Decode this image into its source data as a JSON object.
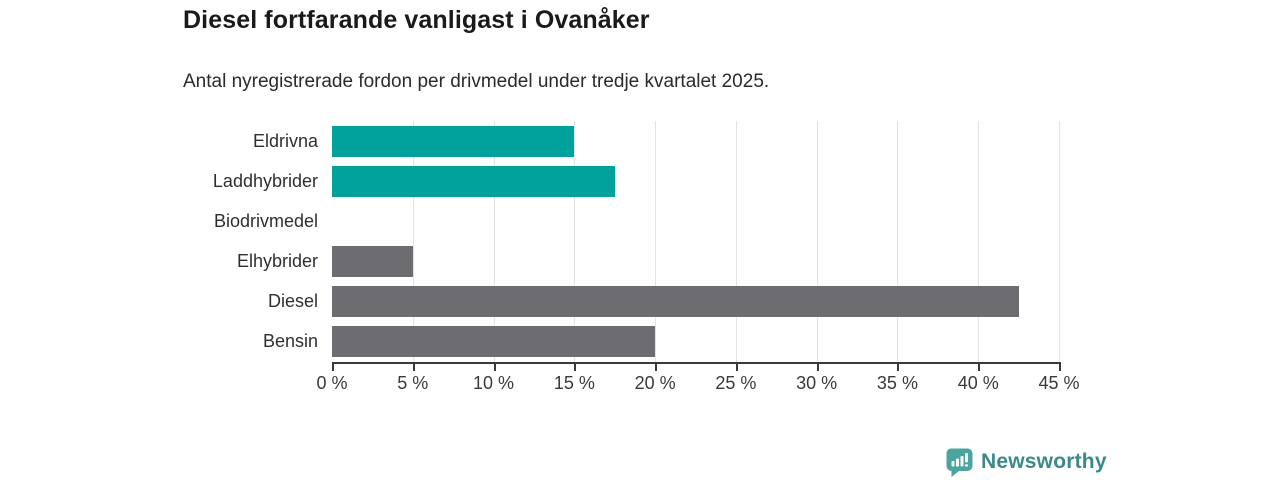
{
  "header": {
    "title": "Diesel fortfarande vanligast i Ovanåker",
    "subtitle": "Antal nyregistrerade fordon per drivmedel under tredje kvartalet 2025."
  },
  "chart_data": {
    "type": "bar",
    "orientation": "horizontal",
    "title": "Diesel fortfarande vanligast i Ovanåker",
    "subtitle": "Antal nyregistrerade fordon per drivmedel under tredje kvartalet 2025.",
    "categories": [
      "Eldrivna",
      "Laddhybrider",
      "Biodrivmedel",
      "Elhybrider",
      "Diesel",
      "Bensin"
    ],
    "values": [
      15,
      17.5,
      0,
      5,
      42.5,
      20
    ],
    "unit": "%",
    "bar_colors": [
      "#00a29b",
      "#00a29b",
      "#00a29b",
      "#6d6d71",
      "#6d6d71",
      "#6d6d71"
    ],
    "accent_teal": "#00a29b",
    "neutral_gray": "#6d6d71",
    "xlim": [
      0,
      45
    ],
    "x_tick_step": 5,
    "x_tick_labels": [
      "0 %",
      "5 %",
      "10 %",
      "15 %",
      "20 %",
      "25 %",
      "30 %",
      "35 %",
      "40 %",
      "45 %"
    ],
    "grid": "vertical-gridlines-on",
    "legend": "none",
    "xlabel": "",
    "ylabel": ""
  },
  "footer": {
    "brand": "Newsworthy",
    "brand_text_color": "#3a8a8a",
    "brand_icon": "bar-chart-pin-icon",
    "brand_icon_color": "#4ba59f"
  }
}
